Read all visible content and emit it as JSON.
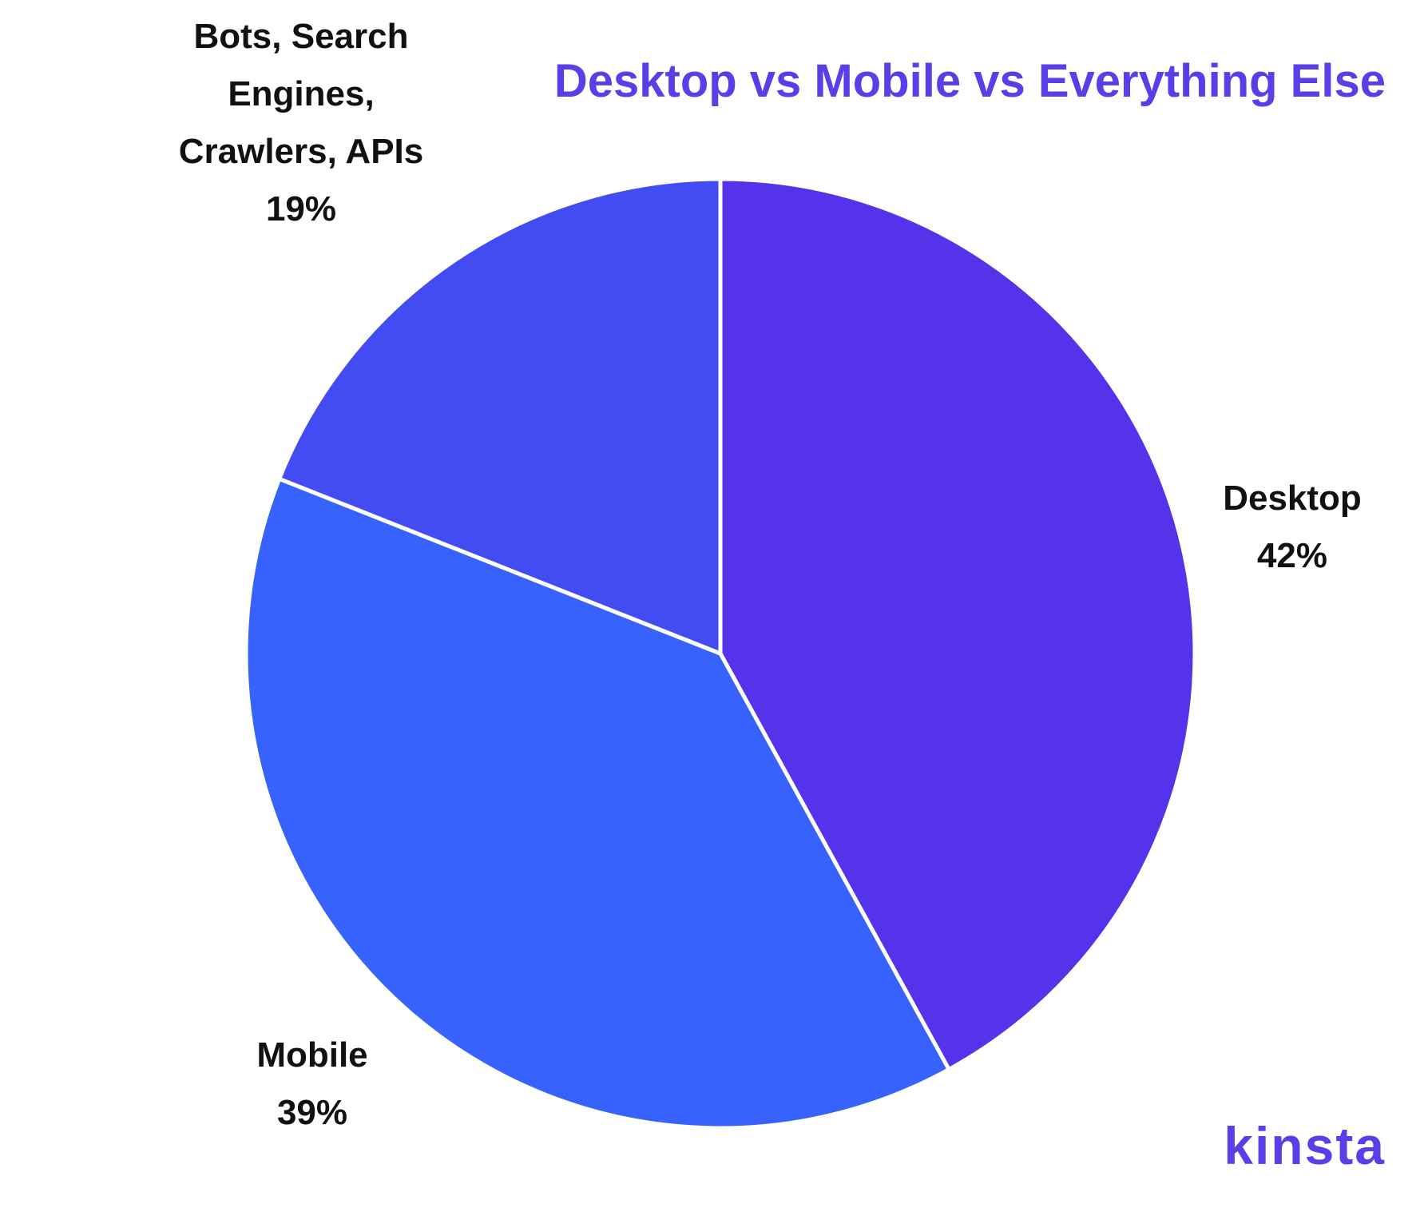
{
  "chart_data": {
    "type": "pie",
    "title": "Desktop vs Mobile vs Everything Else",
    "categories": [
      "Desktop",
      "Mobile",
      "Bots, Search Engines, Crawlers, APIs"
    ],
    "values": [
      42,
      39,
      19
    ],
    "value_labels": [
      "42%",
      "39%",
      "19%"
    ],
    "colors": [
      "#5433eb",
      "#3762fd",
      "#434cf3"
    ]
  },
  "logo": "kinsta"
}
